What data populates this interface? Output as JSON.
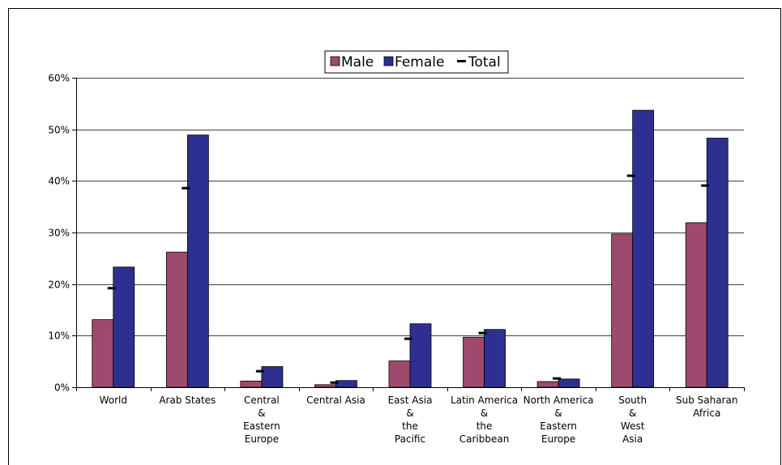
{
  "chart_data": {
    "type": "bar",
    "categories": [
      [
        "World"
      ],
      [
        "Arab  States"
      ],
      [
        "Central",
        "&",
        "Eastern",
        "Europe"
      ],
      [
        "Central   Asia"
      ],
      [
        "East Asia",
        "&",
        "the",
        "Pacific"
      ],
      [
        "Latin America",
        "&",
        "the",
        "Caribbean"
      ],
      [
        "North America",
        "&",
        "Eastern",
        "Europe"
      ],
      [
        "South",
        "&",
        "West",
        "Asia"
      ],
      [
        "Sub Saharan",
        "Africa"
      ]
    ],
    "series": [
      {
        "name": "Male",
        "type": "bar",
        "color": "#9e4a6e",
        "values": [
          13.1,
          26.2,
          1.2,
          0.5,
          5.1,
          9.7,
          1.1,
          29.7,
          31.9
        ]
      },
      {
        "name": "Female",
        "type": "bar",
        "color": "#2e3091",
        "values": [
          23.3,
          48.9,
          4.0,
          1.3,
          12.3,
          11.2,
          1.6,
          53.7,
          48.3
        ]
      },
      {
        "name": "Total",
        "type": "marker",
        "color": "#000000",
        "values": [
          19.2,
          38.6,
          3.1,
          0.9,
          9.4,
          10.5,
          1.7,
          41.0,
          39.1
        ]
      }
    ],
    "yticks": [
      "0%",
      "10%",
      "20%",
      "30%",
      "40%",
      "50%",
      "60%"
    ],
    "ylim": [
      0,
      60
    ],
    "grid": true,
    "legend": "top-center"
  }
}
